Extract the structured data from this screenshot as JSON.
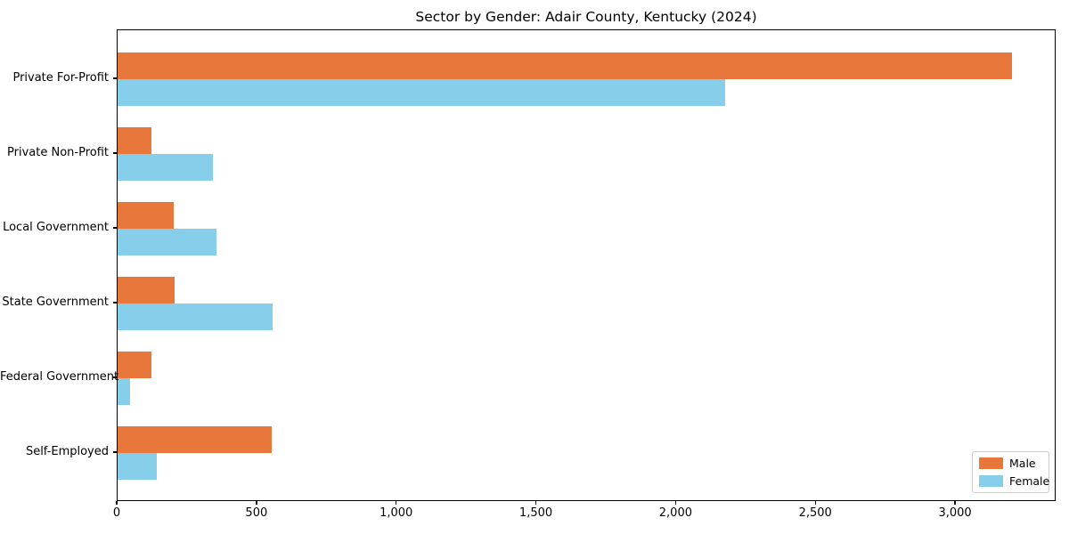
{
  "chart_data": {
    "type": "bar",
    "orientation": "horizontal",
    "title": "Sector by Gender: Adair County, Kentucky (2024)",
    "categories": [
      "Private For-Profit",
      "Private Non-Profit",
      "Local Government",
      "State Government",
      "Federal Government",
      "Self-Employed"
    ],
    "series": [
      {
        "name": "Male",
        "color": "#E8773C",
        "values": [
          3200,
          122,
          200,
          205,
          121,
          550
        ]
      },
      {
        "name": "Female",
        "color": "#87CEEB",
        "values": [
          2175,
          340,
          355,
          555,
          46,
          140
        ]
      }
    ],
    "xlabel": "",
    "ylabel": "",
    "xlim": [
      0,
      3360
    ],
    "xticks": [
      0,
      500,
      1000,
      1500,
      2000,
      2500,
      3000
    ],
    "xtick_labels": [
      "0",
      "500",
      "1,000",
      "1,500",
      "2,000",
      "2,500",
      "3,000"
    ],
    "legend_position": "lower right",
    "grid": false,
    "frame": "full-box",
    "colors": {
      "spine": "#000000",
      "text": "#000000",
      "legend_border": "#cccccc"
    }
  }
}
